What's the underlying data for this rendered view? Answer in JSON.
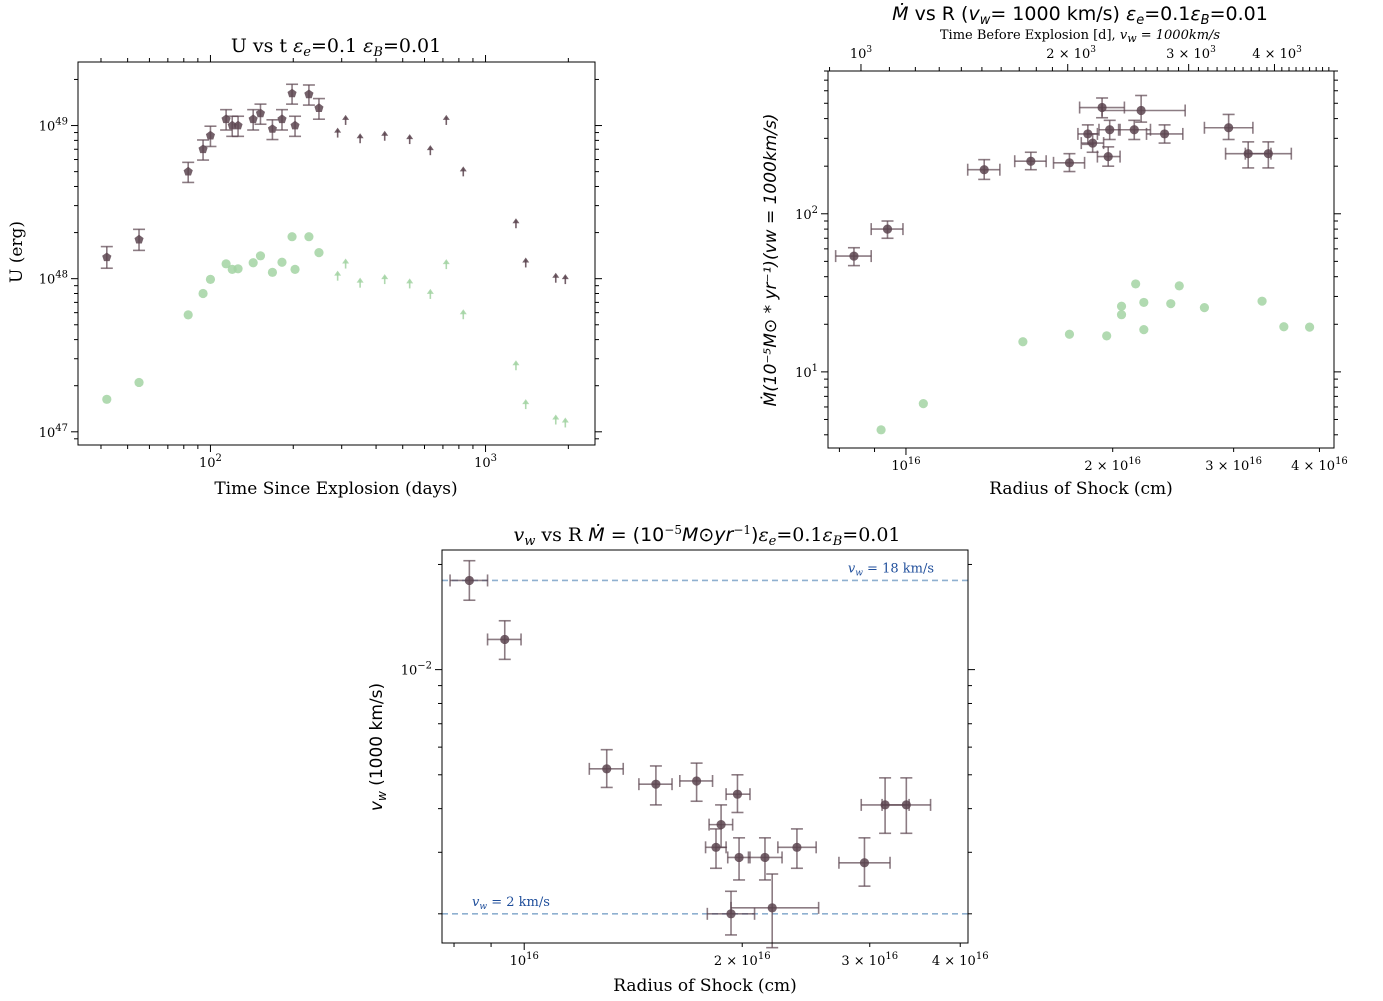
{
  "chart_data": [
    {
      "type": "scatter",
      "title": "U vs t εe=0.1 εB=0.01",
      "xlabel": "Time Since Explosion (days)",
      "ylabel": "U (erg)",
      "xscale": "log",
      "yscale": "log",
      "xlim": [
        33,
        2500
      ],
      "ylim": [
        8.2e+46,
        2.6e+49
      ],
      "xticks": [
        {
          "v": 100,
          "m": "10",
          "e": "2"
        },
        {
          "v": 1000,
          "m": "10",
          "e": "3"
        }
      ],
      "yticks": [
        {
          "v": 1e+47,
          "m": "10",
          "e": "47"
        },
        {
          "v": 1e+48,
          "m": "10",
          "e": "48"
        },
        {
          "v": 1e+49,
          "m": "10",
          "e": "49"
        }
      ],
      "series": [
        {
          "color": "#5c4550",
          "marker": "pentagon",
          "points": [
            {
              "x": 42,
              "y": 1.38e+48,
              "ylo": 1.17e+48,
              "yhi": 1.62e+48
            },
            {
              "x": 55,
              "y": 1.8e+48,
              "ylo": 1.53e+48,
              "yhi": 2.1e+48
            },
            {
              "x": 83,
              "y": 5e+48,
              "ylo": 4.25e+48,
              "yhi": 5.75e+48
            },
            {
              "x": 94,
              "y": 7e+48,
              "ylo": 5.95e+48,
              "yhi": 8.05e+48
            },
            {
              "x": 100,
              "y": 8.6e+48,
              "ylo": 7.3e+48,
              "yhi": 9.9e+48
            },
            {
              "x": 114,
              "y": 1.1e+49,
              "ylo": 9.35e+48,
              "yhi": 1.27e+49
            },
            {
              "x": 120,
              "y": 1e+49,
              "ylo": 8.5e+48,
              "yhi": 1.15e+49
            },
            {
              "x": 126,
              "y": 1e+49,
              "ylo": 8.5e+48,
              "yhi": 1.15e+49
            },
            {
              "x": 143,
              "y": 1.1e+49,
              "ylo": 9.35e+48,
              "yhi": 1.27e+49
            },
            {
              "x": 152,
              "y": 1.2e+49,
              "ylo": 1.02e+49,
              "yhi": 1.38e+49
            },
            {
              "x": 168,
              "y": 9.5e+48,
              "ylo": 8.1e+48,
              "yhi": 1.09e+49
            },
            {
              "x": 182,
              "y": 1.1e+49,
              "ylo": 9.35e+48,
              "yhi": 1.27e+49
            },
            {
              "x": 198,
              "y": 1.62e+49,
              "ylo": 1.38e+49,
              "yhi": 1.86e+49
            },
            {
              "x": 203,
              "y": 1e+49,
              "ylo": 8.5e+48,
              "yhi": 1.15e+49
            },
            {
              "x": 228,
              "y": 1.6e+49,
              "ylo": 1.36e+49,
              "yhi": 1.84e+49
            },
            {
              "x": 248,
              "y": 1.3e+49,
              "ylo": 1.1e+49,
              "yhi": 1.5e+49
            }
          ]
        },
        {
          "color": "#5c4550",
          "marker": "arrow-up",
          "points": [
            {
              "x": 290,
              "y": 8.6e+48
            },
            {
              "x": 310,
              "y": 1.04e+49
            },
            {
              "x": 350,
              "y": 7.9e+48
            },
            {
              "x": 430,
              "y": 8.2e+48
            },
            {
              "x": 530,
              "y": 7.8e+48
            },
            {
              "x": 630,
              "y": 6.6e+48
            },
            {
              "x": 720,
              "y": 1.04e+49
            },
            {
              "x": 830,
              "y": 4.8e+48
            },
            {
              "x": 1290,
              "y": 2.2e+48
            },
            {
              "x": 1400,
              "y": 1.22e+48
            },
            {
              "x": 1800,
              "y": 9.7e+47
            },
            {
              "x": 1950,
              "y": 9.5e+47
            }
          ]
        },
        {
          "color": "#a3d3a3",
          "marker": "circle",
          "points": [
            {
              "x": 42,
              "y": 1.63e+47
            },
            {
              "x": 55,
              "y": 2.1e+47
            },
            {
              "x": 83,
              "y": 5.8e+47
            },
            {
              "x": 94,
              "y": 8e+47
            },
            {
              "x": 100,
              "y": 9.9e+47
            },
            {
              "x": 114,
              "y": 1.25e+48
            },
            {
              "x": 120,
              "y": 1.15e+48
            },
            {
              "x": 126,
              "y": 1.16e+48
            },
            {
              "x": 143,
              "y": 1.27e+48
            },
            {
              "x": 152,
              "y": 1.41e+48
            },
            {
              "x": 168,
              "y": 1.1e+48
            },
            {
              "x": 182,
              "y": 1.28e+48
            },
            {
              "x": 198,
              "y": 1.88e+48
            },
            {
              "x": 203,
              "y": 1.15e+48
            },
            {
              "x": 228,
              "y": 1.88e+48
            },
            {
              "x": 248,
              "y": 1.48e+48
            }
          ]
        },
        {
          "color": "#a3d3a3",
          "marker": "arrow-up",
          "points": [
            {
              "x": 290,
              "y": 1e+48
            },
            {
              "x": 310,
              "y": 1.2e+48
            },
            {
              "x": 350,
              "y": 9e+47
            },
            {
              "x": 430,
              "y": 9.5e+47
            },
            {
              "x": 530,
              "y": 8.9e+47
            },
            {
              "x": 630,
              "y": 7.6e+47
            },
            {
              "x": 720,
              "y": 1.19e+48
            },
            {
              "x": 830,
              "y": 5.6e+47
            },
            {
              "x": 1290,
              "y": 2.6e+47
            },
            {
              "x": 1400,
              "y": 1.45e+47
            },
            {
              "x": 1800,
              "y": 1.15e+47
            },
            {
              "x": 1950,
              "y": 1.1e+47
            }
          ]
        }
      ]
    },
    {
      "type": "scatter",
      "title_parts": {
        "main": "Ṁ vs R (",
        "vsym": "v",
        "vsub": "w",
        "mid": "= 1000 km/s) ",
        "eps1": "ε",
        "eps1sub": "e",
        "eqn1": "=0.1",
        "eps2": "ε",
        "eps2sub": "B",
        "eqn2": "=0.01"
      },
      "top_label": "Time Before Explosion [d], vw = 1000km/s",
      "top_label_parts": {
        "a": "Time Before Explosion [d], ",
        "v": "v",
        "vsub": "w",
        "b": " = 1000km/s"
      },
      "xlabel": "Radius of Shock (cm)",
      "ylabel": "Ṁ(10⁻⁵M⊙ * yr⁻¹)(vw = 1000km/s)",
      "xscale": "log",
      "yscale": "log",
      "xlim": [
        7700000000000000.0,
        4.2e+16
      ],
      "ylim": [
        3.3,
        800
      ],
      "xticks": [
        {
          "v": 1e+16,
          "m": "10",
          "e": "16"
        },
        {
          "v": 2e+16,
          "m": "2 × 10",
          "e": "16"
        },
        {
          "v": 3e+16,
          "m": "3 × 10",
          "e": "16"
        },
        {
          "v": 4e+16,
          "m": "4 × 10",
          "e": "16"
        }
      ],
      "yticks": [
        {
          "v": 10,
          "m": "10",
          "e": "1"
        },
        {
          "v": 100,
          "m": "10",
          "e": "2"
        }
      ],
      "top_ticks": [
        {
          "r": 8600000000000000.0,
          "m": "10",
          "e": "3"
        },
        {
          "r": 1.74e+16,
          "m": "2 × 10",
          "e": "3"
        },
        {
          "r": 2.6e+16,
          "m": "3 × 10",
          "e": "3"
        },
        {
          "r": 3.47e+16,
          "m": "4 × 10",
          "e": "3"
        }
      ],
      "series": [
        {
          "color": "#5c4550",
          "marker": "circle",
          "points": [
            {
              "x": 8400000000000000.0,
              "y": 54,
              "xlo": 7900000000000000.0,
              "xhi": 8900000000000000.0,
              "ylo": 47,
              "yhi": 61
            },
            {
              "x": 9400000000000000.0,
              "y": 80,
              "xlo": 8900000000000000.0,
              "xhi": 9900000000000000.0,
              "ylo": 70,
              "yhi": 90
            },
            {
              "x": 1.3e+16,
              "y": 190,
              "xlo": 1.23e+16,
              "xhi": 1.37e+16,
              "ylo": 165,
              "yhi": 220
            },
            {
              "x": 1.52e+16,
              "y": 215,
              "xlo": 1.44e+16,
              "xhi": 1.6e+16,
              "ylo": 190,
              "yhi": 245
            },
            {
              "x": 1.73e+16,
              "y": 210,
              "xlo": 1.64e+16,
              "xhi": 1.82e+16,
              "ylo": 185,
              "yhi": 240
            },
            {
              "x": 1.84e+16,
              "y": 320,
              "xlo": 1.78e+16,
              "xhi": 1.9e+16,
              "ylo": 275,
              "yhi": 365
            },
            {
              "x": 1.87e+16,
              "y": 280,
              "xlo": 1.8e+16,
              "xhi": 1.94e+16,
              "ylo": 245,
              "yhi": 320
            },
            {
              "x": 1.93e+16,
              "y": 470,
              "xlo": 1.79e+16,
              "xhi": 2.08e+16,
              "ylo": 405,
              "yhi": 540
            },
            {
              "x": 1.97e+16,
              "y": 230,
              "xlo": 1.9e+16,
              "xhi": 2.05e+16,
              "ylo": 200,
              "yhi": 265
            },
            {
              "x": 1.98e+16,
              "y": 340,
              "xlo": 1.91e+16,
              "xhi": 2.05e+16,
              "ylo": 295,
              "yhi": 390
            },
            {
              "x": 2.15e+16,
              "y": 340,
              "xlo": 2.04e+16,
              "xhi": 2.27e+16,
              "ylo": 295,
              "yhi": 390
            },
            {
              "x": 2.2e+16,
              "y": 450,
              "xlo": 1.93e+16,
              "xhi": 2.55e+16,
              "ylo": 380,
              "yhi": 560
            },
            {
              "x": 2.38e+16,
              "y": 320,
              "xlo": 2.24e+16,
              "xhi": 2.53e+16,
              "ylo": 280,
              "yhi": 365
            },
            {
              "x": 2.95e+16,
              "y": 350,
              "xlo": 2.72e+16,
              "xhi": 3.2e+16,
              "ylo": 295,
              "yhi": 425
            },
            {
              "x": 3.15e+16,
              "y": 240,
              "xlo": 2.92e+16,
              "xhi": 3.4e+16,
              "ylo": 195,
              "yhi": 285
            },
            {
              "x": 3.37e+16,
              "y": 240,
              "xlo": 3.12e+16,
              "xhi": 3.64e+16,
              "ylo": 195,
              "yhi": 285
            }
          ]
        },
        {
          "color": "#a3d3a3",
          "marker": "circle",
          "points": [
            {
              "x": 9200000000000000.0,
              "y": 4.3
            },
            {
              "x": 1.06e+16,
              "y": 6.3
            },
            {
              "x": 1.48e+16,
              "y": 15.5
            },
            {
              "x": 1.73e+16,
              "y": 17.3
            },
            {
              "x": 1.96e+16,
              "y": 16.9
            },
            {
              "x": 2.06e+16,
              "y": 23
            },
            {
              "x": 2.06e+16,
              "y": 26
            },
            {
              "x": 2.16e+16,
              "y": 36
            },
            {
              "x": 2.22e+16,
              "y": 27.5
            },
            {
              "x": 2.22e+16,
              "y": 18.5
            },
            {
              "x": 2.43e+16,
              "y": 27
            },
            {
              "x": 2.5e+16,
              "y": 35
            },
            {
              "x": 2.72e+16,
              "y": 25.5
            },
            {
              "x": 3.3e+16,
              "y": 28
            },
            {
              "x": 3.55e+16,
              "y": 19.3
            },
            {
              "x": 3.87e+16,
              "y": 19.2
            }
          ]
        }
      ]
    },
    {
      "type": "scatter",
      "title_parts": {
        "v": "v",
        "vsub": "w",
        "vs": " vs R  ",
        "md": "Ṁ = (10",
        "exp": "−5",
        "rest": "M⊙yr",
        "exp2": "−1",
        "close": ")",
        "eps1": "ε",
        "eps1sub": "e",
        "eqn1": "=0.1",
        "eps2": "ε",
        "eps2sub": "B",
        "eqn2": "=0.01"
      },
      "xlabel": "Radius of Shock (cm)",
      "ylabel": "vw (1000 km/s)",
      "ylabel_parts": {
        "v": "v",
        "sub": "w",
        "rest": " (1000 km/s)"
      },
      "xscale": "log",
      "yscale": "log",
      "xlim": [
        7700000000000000.0,
        4.1e+16
      ],
      "ylim": [
        0.00165,
        0.022
      ],
      "xticks": [
        {
          "v": 1e+16,
          "m": "10",
          "e": "16"
        },
        {
          "v": 2e+16,
          "m": "2 × 10",
          "e": "16"
        },
        {
          "v": 3e+16,
          "m": "3 × 10",
          "e": "16"
        },
        {
          "v": 4e+16,
          "m": "4 × 10",
          "e": "16"
        }
      ],
      "yticks": [
        {
          "v": 0.01,
          "m": "10",
          "e": "−2"
        }
      ],
      "hlines": [
        {
          "y": 0.018,
          "label_v": "v",
          "label_sub": "w",
          "label_rest": " = 18 km/s",
          "label_pos": "right"
        },
        {
          "y": 0.002,
          "label_v": "v",
          "label_sub": "w",
          "label_rest": " = 2 km/s",
          "label_pos": "left"
        }
      ],
      "hline_color": "#8fb0d0",
      "series": [
        {
          "color": "#5c4550",
          "marker": "circle",
          "points": [
            {
              "x": 8400000000000000.0,
              "y": 0.018,
              "xlo": 7900000000000000.0,
              "xhi": 8900000000000000.0,
              "ylo": 0.0158,
              "yhi": 0.0205
            },
            {
              "x": 9400000000000000.0,
              "y": 0.0122,
              "xlo": 8900000000000000.0,
              "xhi": 9900000000000000.0,
              "ylo": 0.0107,
              "yhi": 0.0138
            },
            {
              "x": 1.3e+16,
              "y": 0.0052,
              "xlo": 1.23e+16,
              "xhi": 1.37e+16,
              "ylo": 0.0046,
              "yhi": 0.0059
            },
            {
              "x": 1.52e+16,
              "y": 0.0047,
              "xlo": 1.44e+16,
              "xhi": 1.6e+16,
              "ylo": 0.0041,
              "yhi": 0.0053
            },
            {
              "x": 1.73e+16,
              "y": 0.0048,
              "xlo": 1.64e+16,
              "xhi": 1.82e+16,
              "ylo": 0.0042,
              "yhi": 0.0054
            },
            {
              "x": 1.84e+16,
              "y": 0.0031,
              "xlo": 1.78e+16,
              "xhi": 1.9e+16,
              "ylo": 0.0027,
              "yhi": 0.0035
            },
            {
              "x": 1.87e+16,
              "y": 0.0036,
              "xlo": 1.8e+16,
              "xhi": 1.94e+16,
              "ylo": 0.0031,
              "yhi": 0.0041
            },
            {
              "x": 1.93e+16,
              "y": 0.002,
              "xlo": 1.79e+16,
              "xhi": 2.08e+16,
              "ylo": 0.00174,
              "yhi": 0.00232
            },
            {
              "x": 1.97e+16,
              "y": 0.0044,
              "xlo": 1.9e+16,
              "xhi": 2.05e+16,
              "ylo": 0.0039,
              "yhi": 0.005
            },
            {
              "x": 1.98e+16,
              "y": 0.0029,
              "xlo": 1.91e+16,
              "xhi": 2.05e+16,
              "ylo": 0.0025,
              "yhi": 0.0033
            },
            {
              "x": 2.15e+16,
              "y": 0.0029,
              "xlo": 2.04e+16,
              "xhi": 2.27e+16,
              "ylo": 0.0025,
              "yhi": 0.0033
            },
            {
              "x": 2.2e+16,
              "y": 0.00208,
              "xlo": 1.93e+16,
              "xhi": 2.55e+16,
              "ylo": 0.0016,
              "yhi": 0.0026
            },
            {
              "x": 2.38e+16,
              "y": 0.0031,
              "xlo": 2.24e+16,
              "xhi": 2.53e+16,
              "ylo": 0.0027,
              "yhi": 0.0035
            },
            {
              "x": 2.95e+16,
              "y": 0.0028,
              "xlo": 2.72e+16,
              "xhi": 3.2e+16,
              "ylo": 0.0024,
              "yhi": 0.0033
            },
            {
              "x": 3.15e+16,
              "y": 0.0041,
              "xlo": 2.92e+16,
              "xhi": 3.4e+16,
              "ylo": 0.0034,
              "yhi": 0.0049
            },
            {
              "x": 3.37e+16,
              "y": 0.0041,
              "xlo": 3.12e+16,
              "xhi": 3.64e+16,
              "ylo": 0.0034,
              "yhi": 0.0049
            }
          ]
        }
      ]
    }
  ]
}
